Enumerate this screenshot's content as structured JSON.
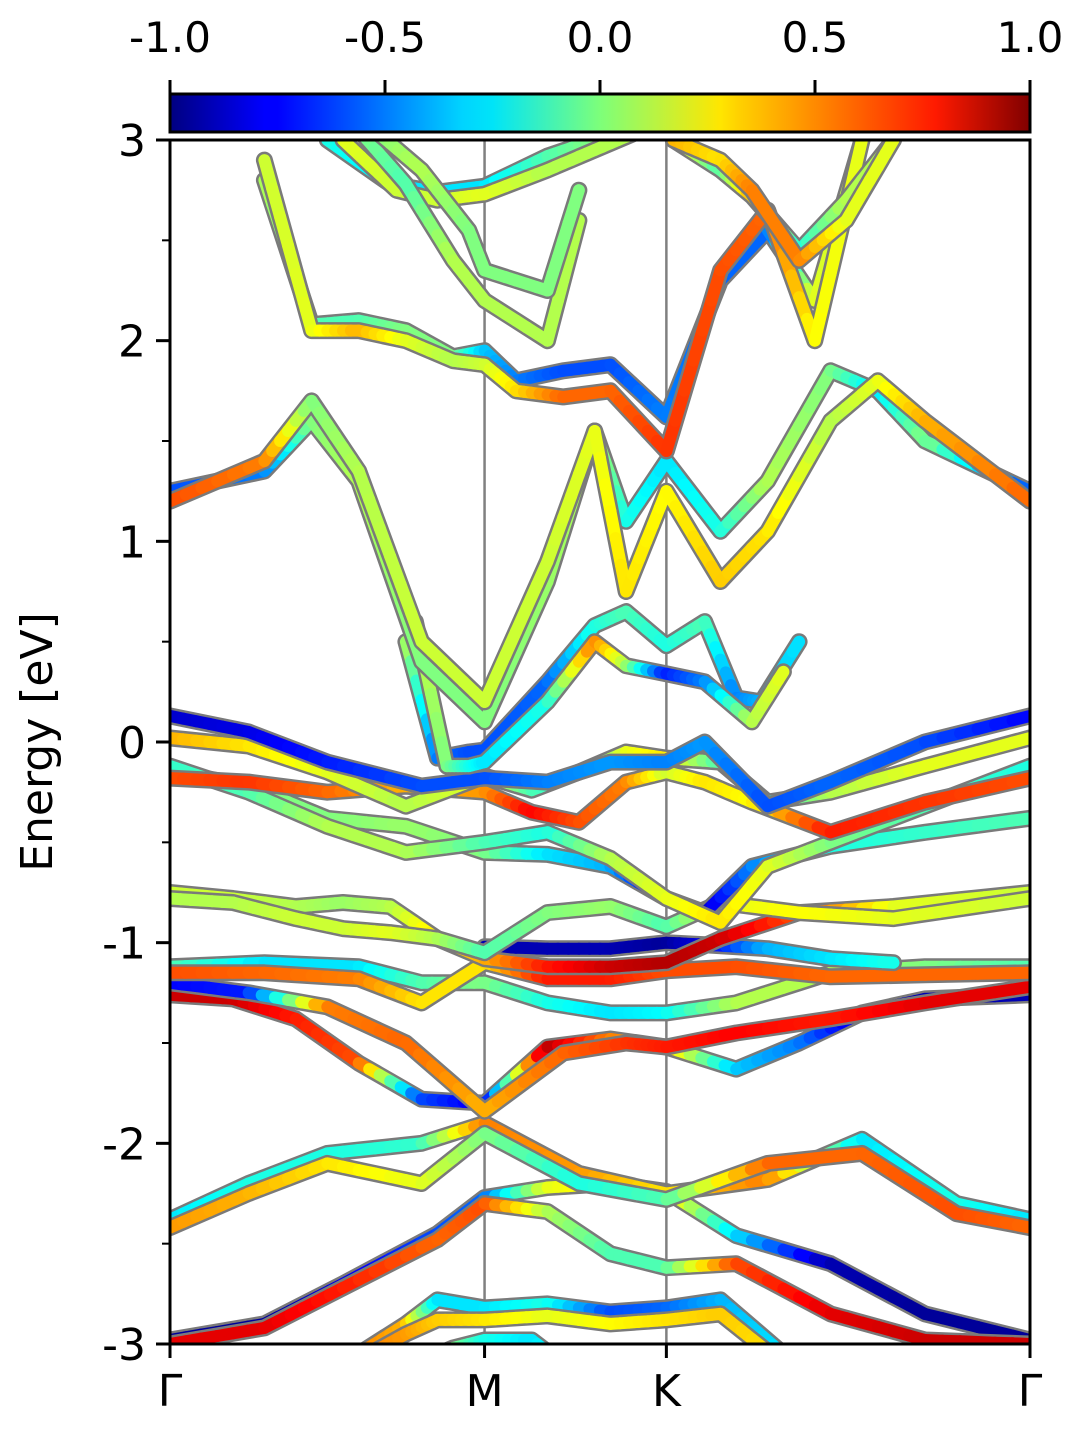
{
  "chart_data": {
    "type": "line",
    "title": "",
    "ylabel": "Energy [eV]",
    "xlabel": "",
    "ylim": [
      -3,
      3
    ],
    "y_ticks": [
      "3",
      "2",
      "1",
      "0",
      "-1",
      "-2",
      "-3"
    ],
    "k_points": [
      "Γ",
      "M",
      "K",
      "Γ"
    ],
    "k_positions": [
      0,
      1,
      1.578,
      2.734
    ],
    "colorbar": {
      "colormap": "jet",
      "range": [
        -1.0,
        1.0
      ],
      "ticks": [
        "-1.0",
        "-0.5",
        "0.0",
        "0.5",
        "1.0"
      ]
    },
    "bands": [
      {
        "x": [
          0,
          0.3,
          0.55,
          0.85,
          1.0,
          1.2,
          1.4,
          1.578,
          1.8,
          2.1,
          2.4,
          2.734
        ],
        "y": [
          -2.98,
          -2.9,
          -2.7,
          -2.45,
          -2.27,
          -2.22,
          -2.2,
          -2.24,
          -2.46,
          -2.6,
          -2.85,
          -2.98
        ],
        "c": [
          -0.95,
          -0.95,
          -0.8,
          -0.6,
          -0.55,
          0.2,
          0.3,
          0.35,
          -0.3,
          -0.9,
          -0.95,
          -0.95
        ]
      },
      {
        "x": [
          0,
          0.3,
          0.55,
          0.85,
          1.0,
          1.2,
          1.4,
          1.578,
          1.8,
          2.1,
          2.4,
          2.734
        ],
        "y": [
          -3.0,
          -2.92,
          -2.72,
          -2.48,
          -2.3,
          -2.34,
          -2.55,
          -2.62,
          -2.6,
          -2.85,
          -2.98,
          -3.0
        ],
        "c": [
          0.8,
          0.8,
          0.7,
          0.55,
          0.6,
          0.1,
          -0.1,
          -0.1,
          0.6,
          0.8,
          0.85,
          0.85
        ]
      },
      {
        "x": [
          0,
          0.25,
          0.5,
          0.8,
          1.0,
          1.3,
          1.578,
          1.9,
          2.2,
          2.5,
          2.734
        ],
        "y": [
          -2.38,
          -2.2,
          -2.05,
          -2.0,
          -1.9,
          -2.15,
          -2.25,
          -2.18,
          -1.98,
          -2.3,
          -2.38
        ],
        "c": [
          -0.3,
          -0.2,
          -0.2,
          -0.15,
          0.5,
          0.45,
          0.3,
          0.5,
          -0.3,
          -0.2,
          -0.3
        ]
      },
      {
        "x": [
          0,
          0.25,
          0.5,
          0.8,
          1.0,
          1.3,
          1.578,
          1.9,
          2.2,
          2.5,
          2.734
        ],
        "y": [
          -2.42,
          -2.25,
          -2.1,
          -2.2,
          -1.95,
          -2.2,
          -2.28,
          -2.1,
          -2.05,
          -2.35,
          -2.42
        ],
        "c": [
          0.45,
          0.4,
          0.3,
          0.2,
          0.0,
          -0.2,
          -0.1,
          0.55,
          0.55,
          0.6,
          0.55
        ]
      },
      {
        "x": [
          0,
          0.2,
          0.4,
          0.6,
          0.8,
          1.0,
          1.2,
          1.4,
          1.578,
          1.8,
          2.0,
          2.2,
          2.4,
          2.734
        ],
        "y": [
          -1.26,
          -1.28,
          -1.38,
          -1.6,
          -1.78,
          -1.8,
          -1.52,
          -1.48,
          -1.52,
          -1.63,
          -1.5,
          -1.35,
          -1.28,
          -1.26
        ],
        "c": [
          0.85,
          0.85,
          0.7,
          0.6,
          -0.6,
          -0.8,
          0.9,
          0.5,
          0.4,
          -0.35,
          -0.5,
          -0.85,
          -0.9,
          -0.9
        ]
      },
      {
        "x": [
          0,
          0.25,
          0.5,
          0.75,
          1.0,
          1.25,
          1.45,
          1.578,
          1.8,
          2.1,
          2.4,
          2.734
        ],
        "y": [
          -1.2,
          -1.25,
          -1.32,
          -1.5,
          -1.84,
          -1.55,
          -1.5,
          -1.52,
          -1.45,
          -1.38,
          -1.3,
          -1.22
        ],
        "c": [
          -0.75,
          -0.7,
          0.5,
          0.55,
          0.4,
          0.55,
          0.65,
          0.7,
          0.75,
          0.7,
          0.8,
          0.8
        ]
      },
      {
        "x": [
          0,
          0.3,
          0.6,
          0.8,
          1.0,
          1.2,
          1.4,
          1.578,
          1.8,
          2.1,
          2.4,
          2.734
        ],
        "y": [
          -1.12,
          -1.1,
          -1.12,
          -1.2,
          -1.2,
          -1.3,
          -1.35,
          -1.35,
          -1.3,
          -1.15,
          -1.12,
          -1.12
        ],
        "c": [
          -0.1,
          -0.3,
          -0.3,
          -0.1,
          0.0,
          -0.2,
          -0.3,
          -0.25,
          0.1,
          0.1,
          0.0,
          -0.1
        ]
      },
      {
        "x": [
          0,
          0.3,
          0.6,
          0.8,
          1.0,
          1.2,
          1.4,
          1.578,
          1.8,
          2.1,
          2.4,
          2.734
        ],
        "y": [
          -1.15,
          -1.15,
          -1.18,
          -1.3,
          -1.1,
          -1.18,
          -1.18,
          -1.14,
          -1.12,
          -1.17,
          -1.16,
          -1.15
        ],
        "c": [
          0.6,
          0.55,
          0.5,
          0.3,
          0.3,
          0.7,
          0.7,
          0.6,
          0.6,
          0.55,
          0.55,
          0.55
        ]
      },
      {
        "x": [
          1.0,
          1.2,
          1.4,
          1.578,
          1.7,
          1.9,
          2.1,
          2.3
        ],
        "y": [
          -1.02,
          -1.03,
          -1.03,
          -1.0,
          -1.01,
          -1.03,
          -1.08,
          -1.1
        ],
        "c": [
          -0.9,
          -0.9,
          -0.9,
          -0.95,
          -0.8,
          -0.4,
          -0.3,
          -0.2
        ]
      },
      {
        "x": [
          0,
          0.2,
          0.4,
          0.55,
          0.7,
          0.85,
          1.0,
          1.2,
          1.4,
          1.578,
          1.75,
          2.0,
          2.3,
          2.734
        ],
        "y": [
          -0.75,
          -0.78,
          -0.82,
          -0.8,
          -0.82,
          -0.98,
          -1.08,
          -1.12,
          -1.12,
          -1.1,
          -0.98,
          -0.85,
          -0.82,
          -0.75
        ],
        "c": [
          0.15,
          0.15,
          0.1,
          0.05,
          0.1,
          0.3,
          0.4,
          0.7,
          0.85,
          0.9,
          0.85,
          0.6,
          0.2,
          0.15
        ]
      },
      {
        "x": [
          0,
          0.2,
          0.4,
          0.55,
          0.7,
          0.85,
          1.0,
          1.2,
          1.4,
          1.578,
          1.75,
          2.0,
          2.3,
          2.734
        ],
        "y": [
          -0.78,
          -0.8,
          -0.88,
          -0.93,
          -0.95,
          -0.98,
          -1.05,
          -0.85,
          -0.82,
          -0.92,
          -0.8,
          -0.85,
          -0.88,
          -0.78
        ],
        "c": [
          0.1,
          0.1,
          0.15,
          0.15,
          0.2,
          0.1,
          -0.1,
          0.0,
          0.05,
          -0.1,
          0.2,
          0.25,
          0.2,
          0.15
        ]
      },
      {
        "x": [
          0,
          0.25,
          0.5,
          0.75,
          1.0,
          1.2,
          1.4,
          1.578,
          1.7,
          1.85,
          2.1,
          2.4,
          2.734
        ],
        "y": [
          -0.15,
          -0.22,
          -0.38,
          -0.42,
          -0.55,
          -0.56,
          -0.62,
          -0.78,
          -0.85,
          -0.62,
          -0.52,
          -0.45,
          -0.38
        ],
        "c": [
          0.0,
          0.0,
          0.0,
          0.05,
          0.0,
          -0.3,
          -0.4,
          -0.85,
          -0.85,
          -0.5,
          -0.2,
          -0.15,
          -0.1
        ]
      },
      {
        "x": [
          0,
          0.25,
          0.5,
          0.75,
          1.0,
          1.2,
          1.4,
          1.578,
          1.75,
          1.9,
          2.1,
          2.4,
          2.734
        ],
        "y": [
          -0.12,
          -0.25,
          -0.42,
          -0.55,
          -0.5,
          -0.45,
          -0.58,
          -0.78,
          -0.9,
          -0.62,
          -0.5,
          -0.32,
          -0.12
        ],
        "c": [
          -0.15,
          -0.1,
          0.1,
          0.1,
          -0.1,
          -0.2,
          0.1,
          0.2,
          0.3,
          0.2,
          0.0,
          -0.1,
          -0.2
        ]
      },
      {
        "x": [
          0,
          0.25,
          0.5,
          0.75,
          1.0,
          1.15,
          1.3,
          1.45,
          1.578,
          1.7,
          1.85,
          2.1,
          2.4,
          2.734
        ],
        "y": [
          -0.18,
          -0.2,
          -0.25,
          -0.22,
          -0.25,
          -0.35,
          -0.4,
          -0.2,
          -0.15,
          -0.2,
          -0.3,
          -0.45,
          -0.3,
          -0.18
        ],
        "c": [
          0.6,
          0.65,
          0.55,
          0.4,
          0.45,
          0.75,
          0.6,
          0.5,
          0.15,
          0.3,
          0.25,
          0.7,
          0.65,
          0.6
        ]
      },
      {
        "x": [
          0,
          0.25,
          0.5,
          0.75,
          1.0,
          1.15,
          1.3,
          1.45,
          1.578,
          1.75,
          1.9,
          2.1,
          2.4,
          2.734
        ],
        "y": [
          0.02,
          -0.02,
          -0.15,
          -0.32,
          -0.17,
          -0.24,
          -0.15,
          -0.05,
          -0.08,
          -0.1,
          -0.3,
          -0.25,
          -0.12,
          0.02
        ],
        "c": [
          0.4,
          0.3,
          0.2,
          0.1,
          0.2,
          -0.1,
          -0.2,
          0.2,
          0.3,
          -0.1,
          -0.2,
          0.1,
          0.2,
          0.2
        ]
      },
      {
        "x": [
          0,
          0.25,
          0.5,
          0.8,
          1.0,
          1.2,
          1.4,
          1.578,
          1.7,
          1.9,
          2.1,
          2.4,
          2.734
        ],
        "y": [
          0.13,
          0.05,
          -0.1,
          -0.22,
          -0.18,
          -0.2,
          -0.1,
          -0.1,
          0.0,
          -0.32,
          -0.2,
          0.0,
          0.13
        ],
        "c": [
          -0.85,
          -0.8,
          -0.7,
          -0.6,
          -0.6,
          -0.5,
          -0.45,
          -0.5,
          -0.45,
          -0.6,
          -0.55,
          -0.6,
          -0.75
        ]
      },
      {
        "x": [
          0.75,
          0.85,
          0.95,
          1.0,
          1.2,
          1.35,
          1.45,
          1.578,
          1.7,
          1.8,
          1.88,
          2.0
        ],
        "y": [
          0.5,
          -0.08,
          -0.05,
          -0.04,
          0.3,
          0.58,
          0.65,
          0.48,
          0.6,
          0.22,
          0.2,
          0.5
        ],
        "c": [
          0.1,
          -0.5,
          -0.6,
          -0.6,
          -0.55,
          -0.2,
          -0.1,
          -0.2,
          -0.1,
          -0.5,
          -0.4,
          -0.3
        ]
      },
      {
        "x": [
          0.78,
          0.88,
          0.95,
          1.0,
          1.2,
          1.35,
          1.45,
          1.578,
          1.7,
          1.85,
          1.95
        ],
        "y": [
          0.6,
          -0.12,
          -0.12,
          -0.1,
          0.2,
          0.5,
          0.38,
          0.34,
          0.3,
          0.1,
          0.35
        ],
        "c": [
          0.15,
          0.0,
          -0.2,
          -0.3,
          -0.2,
          0.5,
          0.1,
          -0.7,
          -0.5,
          0.1,
          0.2
        ]
      },
      {
        "x": [
          0,
          0.3,
          0.45,
          0.6,
          0.8,
          1.0,
          1.2,
          1.35,
          1.45,
          1.578,
          1.75,
          1.9,
          2.1,
          2.25,
          2.4,
          2.734
        ],
        "y": [
          1.25,
          1.35,
          1.6,
          1.3,
          0.4,
          0.1,
          0.8,
          1.55,
          1.1,
          1.4,
          1.05,
          1.3,
          1.85,
          1.75,
          1.5,
          1.25
        ],
        "c": [
          -0.6,
          -0.5,
          0.0,
          0.1,
          0.0,
          0.0,
          0.05,
          0.1,
          -0.2,
          -0.3,
          -0.2,
          0.1,
          0.0,
          -0.3,
          0.0,
          -0.6
        ]
      },
      {
        "x": [
          0,
          0.3,
          0.45,
          0.6,
          0.8,
          1.0,
          1.2,
          1.35,
          1.45,
          1.578,
          1.75,
          1.9,
          2.1,
          2.25,
          2.4,
          2.734
        ],
        "y": [
          1.2,
          1.4,
          1.7,
          1.35,
          0.5,
          0.2,
          0.9,
          1.55,
          0.75,
          1.25,
          0.8,
          1.05,
          1.6,
          1.8,
          1.6,
          1.2
        ],
        "c": [
          0.6,
          0.5,
          0.0,
          0.1,
          0.15,
          0.15,
          0.15,
          0.2,
          0.3,
          0.25,
          0.35,
          0.3,
          0.1,
          0.2,
          0.4,
          0.55
        ]
      },
      {
        "x": [
          0.3,
          0.45,
          0.6,
          0.75,
          0.9,
          1.0,
          1.1,
          1.25,
          1.4,
          1.578,
          1.75,
          1.9,
          2.05,
          2.2
        ],
        "y": [
          2.8,
          2.08,
          2.1,
          2.05,
          1.92,
          1.95,
          1.8,
          1.85,
          1.88,
          1.62,
          2.3,
          2.55,
          2.2,
          3.0
        ],
        "c": [
          0.1,
          -0.1,
          -0.1,
          0.0,
          0.0,
          -0.35,
          -0.5,
          -0.6,
          -0.6,
          -0.5,
          -0.55,
          -0.55,
          0.2,
          0.1
        ]
      },
      {
        "x": [
          0.3,
          0.45,
          0.6,
          0.75,
          0.9,
          1.0,
          1.1,
          1.25,
          1.4,
          1.578,
          1.75,
          1.9,
          2.05,
          2.2
        ],
        "y": [
          2.9,
          2.05,
          2.05,
          2.0,
          1.9,
          1.88,
          1.75,
          1.72,
          1.75,
          1.45,
          2.35,
          2.65,
          2.0,
          3.0
        ],
        "c": [
          0.15,
          0.2,
          0.4,
          0.2,
          0.1,
          0.15,
          0.3,
          0.55,
          0.55,
          0.65,
          0.6,
          0.55,
          0.25,
          0.2
        ]
      },
      {
        "x": [
          0.5,
          0.7,
          0.85,
          1.0,
          1.2,
          1.35,
          1.5
        ],
        "y": [
          3.0,
          2.78,
          2.74,
          2.77,
          2.92,
          3.0,
          3.1
        ],
        "c": [
          -0.2,
          -0.3,
          -0.3,
          -0.3,
          -0.1,
          0.0,
          0.1
        ]
      },
      {
        "x": [
          0.55,
          0.72,
          0.85,
          1.0,
          1.2,
          1.35,
          1.5
        ],
        "y": [
          3.0,
          2.75,
          2.7,
          2.73,
          2.85,
          2.95,
          3.05
        ],
        "c": [
          0.2,
          0.15,
          0.15,
          0.2,
          0.1,
          0.1,
          0.1
        ]
      },
      {
        "x": [
          1.6,
          1.75,
          1.85,
          2.0,
          2.15,
          2.3
        ],
        "y": [
          3.0,
          2.85,
          2.72,
          2.45,
          2.7,
          3.0
        ],
        "c": [
          0.3,
          -0.1,
          0.4,
          -0.2,
          0.1,
          0.1
        ]
      },
      {
        "x": [
          1.6,
          1.75,
          1.85,
          2.0,
          2.15,
          2.3
        ],
        "y": [
          3.0,
          2.9,
          2.75,
          2.4,
          2.6,
          3.0
        ],
        "c": [
          0.4,
          0.3,
          0.5,
          0.5,
          0.2,
          0.2
        ]
      },
      {
        "x": [
          0.4,
          0.6,
          0.75,
          0.9,
          1.0,
          1.2,
          1.3
        ],
        "y": [
          3.3,
          3.05,
          2.78,
          2.4,
          2.2,
          2.0,
          2.6
        ],
        "c": [
          0.1,
          0.0,
          -0.1,
          0.1,
          0.1,
          0.1,
          0.1
        ]
      },
      {
        "x": [
          0.45,
          0.65,
          0.8,
          0.95,
          1.0,
          1.2,
          1.3
        ],
        "y": [
          3.3,
          3.05,
          2.85,
          2.55,
          2.35,
          2.25,
          2.75
        ],
        "c": [
          0.0,
          0.0,
          0.1,
          0.0,
          0.0,
          0.0,
          0.0
        ]
      },
      {
        "x": [
          0.75,
          0.9,
          1.0,
          1.15,
          1.25
        ],
        "y": [
          -3.12,
          -3.02,
          -2.98,
          -2.98,
          -3.1
        ],
        "c": [
          0.2,
          0.0,
          -0.2,
          -0.3,
          -0.2
        ]
      },
      {
        "x": [
          0.6,
          0.75,
          0.85,
          1.0,
          1.2,
          1.4,
          1.578,
          1.75,
          1.95
        ],
        "y": [
          -3.05,
          -2.9,
          -2.78,
          -2.82,
          -2.8,
          -2.84,
          -2.82,
          -2.78,
          -3.05
        ],
        "c": [
          0.5,
          0.4,
          -0.3,
          -0.3,
          -0.2,
          -0.6,
          -0.55,
          -0.4,
          -0.3
        ]
      },
      {
        "x": [
          0.6,
          0.75,
          0.85,
          1.0,
          1.2,
          1.4,
          1.578,
          1.75,
          1.95
        ],
        "y": [
          -3.08,
          -2.95,
          -2.88,
          -2.88,
          -2.86,
          -2.9,
          -2.88,
          -2.85,
          -3.1
        ],
        "c": [
          0.5,
          0.45,
          0.35,
          0.3,
          0.2,
          0.25,
          0.3,
          0.35,
          0.3
        ]
      }
    ]
  }
}
